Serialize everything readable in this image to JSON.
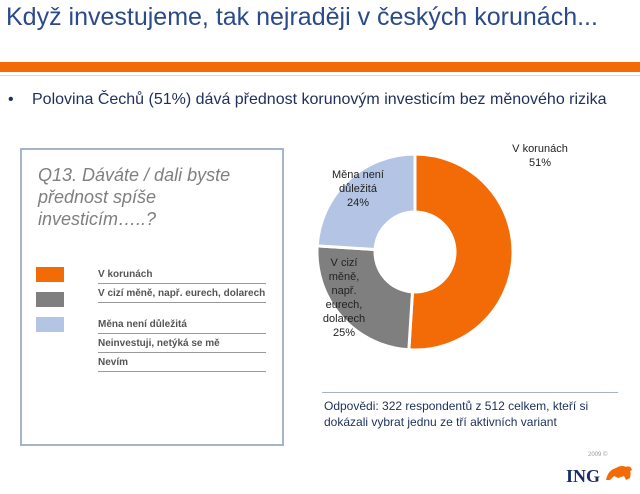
{
  "header": {
    "title": "Když investujeme, tak nejraději v českých korunách..."
  },
  "bullet": {
    "symbol": "•",
    "text": "Polovina Čechů (51%) dává přednost korunovým investicím bez měnového rizika"
  },
  "question_box": {
    "question": "Q13. Dáváte / dali byste přednost spíše investicím…..?",
    "legend": [
      {
        "label": "V korunách",
        "color": "#f26b07"
      },
      {
        "label": "V cizí měně, např. eurech, dolarech",
        "color": "#7f7f7f"
      },
      {
        "label": "Měna není důležitá",
        "color": "#b4c4e4"
      },
      {
        "label": "Neinvestuji, netýká se mě",
        "color": "#ffffff"
      },
      {
        "label": "Nevím",
        "color": "#ffffff"
      }
    ]
  },
  "chart_data": {
    "type": "pie",
    "variant": "donut",
    "categories": [
      "V korunách",
      "V cizí měně, např. eurech, dolarech",
      "Měna není důležitá"
    ],
    "values": [
      51,
      25,
      24
    ],
    "colors": [
      "#f26b07",
      "#7f7f7f",
      "#b4c4e4"
    ],
    "slice_labels": [
      {
        "name": "V korunách",
        "value": "51%"
      },
      {
        "name": "V cizí měně, např. eurech, dolarech",
        "value": "25%"
      },
      {
        "name": "Měna není důležitá",
        "value": "24%"
      }
    ]
  },
  "slice_label_lines": {
    "korunach": [
      "V korunách",
      "51%"
    ],
    "cizi": [
      "V cizí",
      "měně,",
      "např.",
      "eurech,",
      "dolarech",
      "25%"
    ],
    "nedulezita": [
      "Měna není",
      "důležitá",
      "24%"
    ]
  },
  "note": {
    "text": "Odpovědi: 322 respondentů z 512 celkem, kteří si dokázali vybrat jednu ze tří aktivních variant"
  },
  "footer": {
    "logo_text": "ING",
    "copyright": "2009 ©"
  }
}
